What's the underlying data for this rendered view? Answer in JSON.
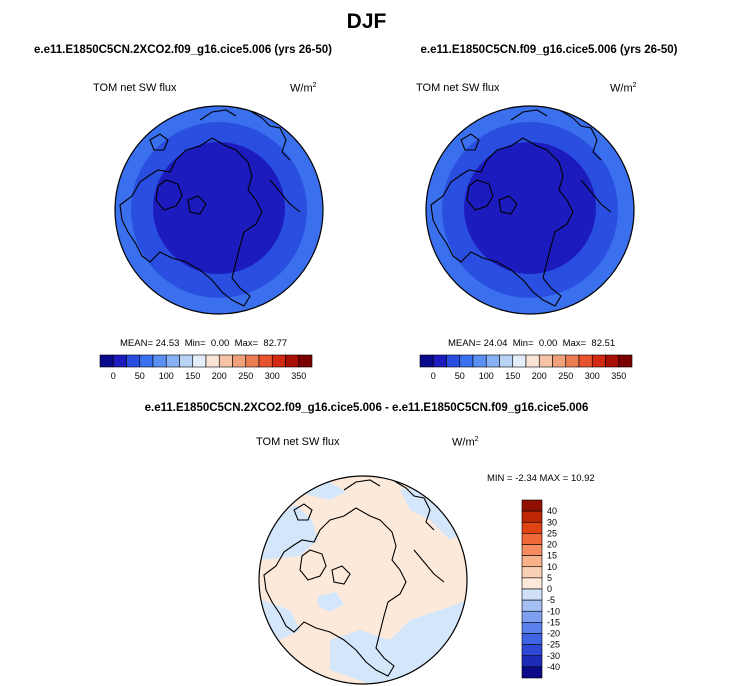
{
  "title": "DJF",
  "panels": [
    {
      "title": "e.e11.E1850C5CN.2XCO2.f09_g16.cice5.006 (yrs 26-50)",
      "variable": "TOM net SW flux",
      "units_base": "W/m",
      "units_exp": "2",
      "stats": {
        "mean_label": "MEAN=",
        "mean": "24.53",
        "min_label": "Min=",
        "min": "0.00",
        "max_label": "Max=",
        "max": "82.77"
      }
    },
    {
      "title": "e.e11.E1850C5CN.f09_g16.cice5.006 (yrs 26-50)",
      "variable": "TOM net SW flux",
      "units_base": "W/m",
      "units_exp": "2",
      "stats": {
        "mean_label": "MEAN=",
        "mean": "24.04",
        "min_label": "Min=",
        "min": "0.00",
        "max_label": "Max=",
        "max": "82.51"
      }
    }
  ],
  "diff_panel": {
    "title": "e.e11.E1850C5CN.2XCO2.f09_g16.cice5.006 - e.e11.E1850C5CN.f09_g16.cice5.006",
    "variable": "TOM net SW flux",
    "units_base": "W/m",
    "units_exp": "2",
    "stats_text": "MIN = -2.34  MAX = 10.92"
  },
  "colorbar_abs": {
    "colors": [
      "#0a0a8a",
      "#1c1cbe",
      "#2a4ee0",
      "#3a6fee",
      "#5b8ff2",
      "#87b0f4",
      "#b9d2f6",
      "#e4eefa",
      "#fbe5d6",
      "#f6c3a6",
      "#f1a07c",
      "#ec7d52",
      "#e6552d",
      "#d22a12",
      "#a90f04",
      "#7a0000"
    ],
    "ticks": [
      "0",
      "50",
      "100",
      "150",
      "200",
      "250",
      "300",
      "350"
    ]
  },
  "colorbar_diff": {
    "colors": [
      "#0a0a8a",
      "#1d2bb6",
      "#2d48d4",
      "#3e64e2",
      "#5b82ec",
      "#7ea0f0",
      "#a4c0f3",
      "#cfe0f8",
      "#fde9da",
      "#fbd1b5",
      "#f8b28a",
      "#f58c5f",
      "#ef6838",
      "#de4414",
      "#bf2705",
      "#8f1000"
    ],
    "ticks": [
      "40",
      "30",
      "25",
      "20",
      "15",
      "10",
      "5",
      "0",
      "-5",
      "-10",
      "-15",
      "-20",
      "-25",
      "-30",
      "-40"
    ]
  },
  "map_colors": {
    "deep": "#1c1cbe",
    "mid": "#2a4ee0",
    "outer": "#3a6fee",
    "diff_base": "#fde9da",
    "diff_blue": "#d4e6fa"
  }
}
